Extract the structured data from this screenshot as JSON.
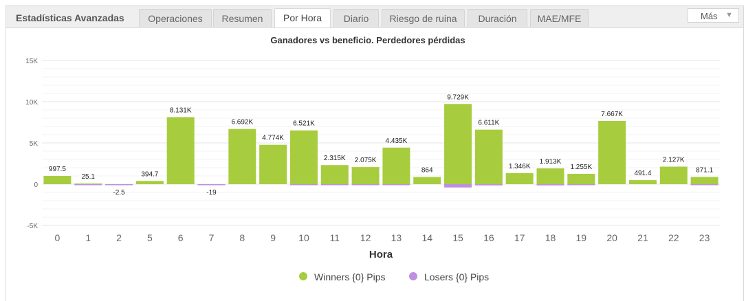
{
  "widget": {
    "title": "Estadísticas Avanzadas",
    "tabs": [
      {
        "label": "Operaciones",
        "active": false
      },
      {
        "label": "Resumen",
        "active": false
      },
      {
        "label": "Por Hora",
        "active": true
      },
      {
        "label": "Diario",
        "active": false
      },
      {
        "label": "Riesgo de ruina",
        "active": false
      },
      {
        "label": "Duración",
        "active": false
      },
      {
        "label": "MAE/MFE",
        "active": false
      }
    ],
    "more_label": "Más",
    "more_icon": "chevron-down-icon"
  },
  "colors": {
    "winners": "#a7cd3f",
    "losers": "#bf8fe0"
  },
  "chart_data": {
    "type": "bar",
    "title": "Ganadores vs beneficio. Perdedores pérdidas",
    "xlabel": "Hora",
    "ylabel": "",
    "ylim": [
      -5000,
      15000
    ],
    "yticks": [
      -5000,
      0,
      5000,
      10000,
      15000
    ],
    "ytick_labels": [
      "-5K",
      "0",
      "5K",
      "10K",
      "15K"
    ],
    "grid": true,
    "legend_position": "bottom-center",
    "categories": [
      "0",
      "1",
      "2",
      "5",
      "6",
      "7",
      "8",
      "9",
      "10",
      "11",
      "12",
      "13",
      "14",
      "15",
      "16",
      "17",
      "18",
      "19",
      "20",
      "21",
      "22",
      "23"
    ],
    "data_labels": [
      "997.5",
      "25.1",
      "-2.5",
      "394.7",
      "8.131K",
      "-19",
      "6.692K",
      "4.774K",
      "6.521K",
      "2.315K",
      "2.075K",
      "4.435K",
      "864",
      "9.729K",
      "6.611K",
      "1.346K",
      "1.913K",
      "1.255K",
      "7.667K",
      "491.4",
      "2.127K",
      "871.1"
    ],
    "series": [
      {
        "name": "Winners {0} Pips",
        "color": "#a7cd3f",
        "values": [
          997.5,
          25.1,
          0,
          394.7,
          8131,
          0,
          6692,
          4774,
          6521,
          2315,
          2075,
          4435,
          864,
          9729,
          6611,
          1346,
          1913,
          1255,
          7667,
          491.4,
          2127,
          871.1
        ]
      },
      {
        "name": "Losers {0} Pips",
        "color": "#bf8fe0",
        "values": [
          0,
          -100,
          -2.5,
          0,
          0,
          -19,
          0,
          0,
          -80,
          -80,
          -80,
          -80,
          0,
          -400,
          -150,
          0,
          -150,
          -50,
          0,
          0,
          0,
          -60
        ]
      }
    ]
  }
}
